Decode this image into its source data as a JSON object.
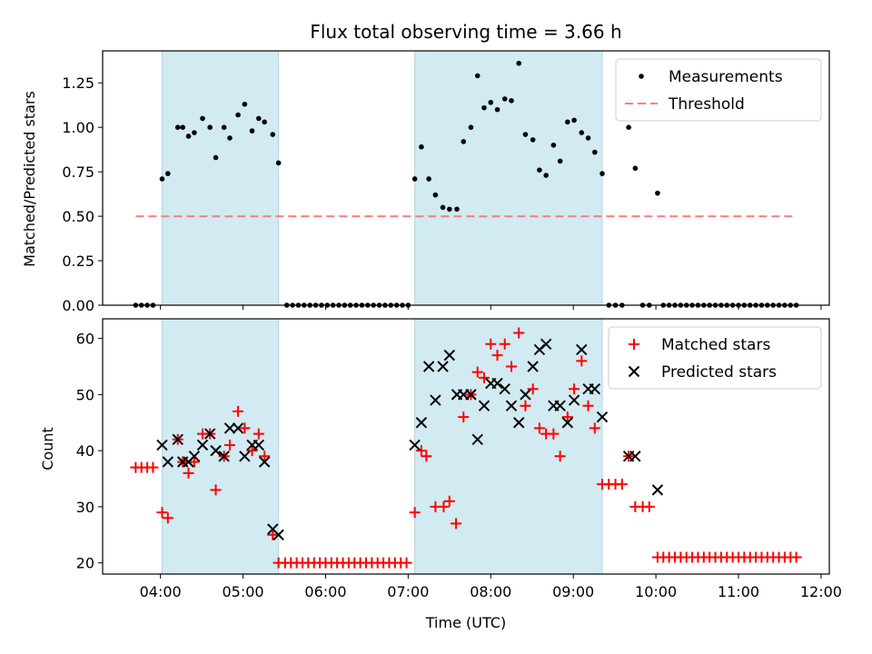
{
  "title": "Flux total observing time = 3.66 h",
  "xlabel": "Time (UTC)",
  "xticks": [
    {
      "v": 4,
      "label": "04:00"
    },
    {
      "v": 5,
      "label": "05:00"
    },
    {
      "v": 6,
      "label": "06:00"
    },
    {
      "v": 7,
      "label": "07:00"
    },
    {
      "v": 8,
      "label": "08:00"
    },
    {
      "v": 9,
      "label": "09:00"
    },
    {
      "v": 10,
      "label": "10:00"
    },
    {
      "v": 11,
      "label": "11:00"
    },
    {
      "v": 12,
      "label": "12:00"
    }
  ],
  "chart_data": [
    {
      "type": "scatter",
      "ylabel": "Matched/Predicted stars",
      "xlim": [
        3.3,
        12.1
      ],
      "ylim": [
        0,
        1.43
      ],
      "yticks": [
        "0.00",
        "0.25",
        "0.50",
        "0.75",
        "1.00",
        "1.25"
      ],
      "shaded_spans": [
        [
          4.02,
          5.43
        ],
        [
          7.08,
          9.35
        ]
      ],
      "shade_color": "#add8e6",
      "legend_position": "upper right",
      "series": [
        {
          "name": "Measurements",
          "marker": "dot",
          "color": "#000000",
          "points": [
            [
              3.7,
              0
            ],
            [
              3.77,
              0
            ],
            [
              3.84,
              0
            ],
            [
              3.91,
              0
            ],
            [
              4.02,
              0.71
            ],
            [
              4.09,
              0.74
            ],
            [
              4.21,
              1.0
            ],
            [
              4.27,
              1.0
            ],
            [
              4.34,
              0.95
            ],
            [
              4.41,
              0.97
            ],
            [
              4.51,
              1.05
            ],
            [
              4.6,
              1.0
            ],
            [
              4.67,
              0.83
            ],
            [
              4.77,
              1.0
            ],
            [
              4.84,
              0.94
            ],
            [
              4.94,
              1.07
            ],
            [
              5.02,
              1.13
            ],
            [
              5.11,
              0.98
            ],
            [
              5.19,
              1.05
            ],
            [
              5.26,
              1.03
            ],
            [
              5.36,
              0.96
            ],
            [
              5.43,
              0.8
            ],
            [
              5.53,
              0
            ],
            [
              5.6,
              0
            ],
            [
              5.67,
              0
            ],
            [
              5.74,
              0
            ],
            [
              5.81,
              0
            ],
            [
              5.88,
              0
            ],
            [
              5.95,
              0
            ],
            [
              6.02,
              0
            ],
            [
              6.09,
              0
            ],
            [
              6.16,
              0
            ],
            [
              6.23,
              0
            ],
            [
              6.3,
              0
            ],
            [
              6.37,
              0
            ],
            [
              6.44,
              0
            ],
            [
              6.51,
              0
            ],
            [
              6.58,
              0
            ],
            [
              6.65,
              0
            ],
            [
              6.72,
              0
            ],
            [
              6.79,
              0
            ],
            [
              6.86,
              0
            ],
            [
              6.93,
              0
            ],
            [
              7.0,
              0
            ],
            [
              7.08,
              0.71
            ],
            [
              7.16,
              0.89
            ],
            [
              7.25,
              0.71
            ],
            [
              7.33,
              0.62
            ],
            [
              7.42,
              0.55
            ],
            [
              7.5,
              0.54
            ],
            [
              7.59,
              0.54
            ],
            [
              7.67,
              0.92
            ],
            [
              7.76,
              1.0
            ],
            [
              7.84,
              1.29
            ],
            [
              7.92,
              1.11
            ],
            [
              8.0,
              1.14
            ],
            [
              8.08,
              1.1
            ],
            [
              8.17,
              1.16
            ],
            [
              8.25,
              1.15
            ],
            [
              8.34,
              1.36
            ],
            [
              8.42,
              0.96
            ],
            [
              8.51,
              0.93
            ],
            [
              8.59,
              0.76
            ],
            [
              8.67,
              0.73
            ],
            [
              8.76,
              0.9
            ],
            [
              8.84,
              0.81
            ],
            [
              8.93,
              1.03
            ],
            [
              9.01,
              1.04
            ],
            [
              9.1,
              0.97
            ],
            [
              9.18,
              0.94
            ],
            [
              9.26,
              0.86
            ],
            [
              9.35,
              0.74
            ],
            [
              9.43,
              0
            ],
            [
              9.51,
              0
            ],
            [
              9.59,
              0
            ],
            [
              9.67,
              1.0
            ],
            [
              9.75,
              0.77
            ],
            [
              9.84,
              0
            ],
            [
              9.92,
              0
            ],
            [
              10.02,
              0.63
            ],
            [
              10.09,
              0
            ],
            [
              10.16,
              0
            ],
            [
              10.23,
              0
            ],
            [
              10.3,
              0
            ],
            [
              10.37,
              0
            ],
            [
              10.44,
              0
            ],
            [
              10.51,
              0
            ],
            [
              10.58,
              0
            ],
            [
              10.65,
              0
            ],
            [
              10.72,
              0
            ],
            [
              10.79,
              0
            ],
            [
              10.86,
              0
            ],
            [
              10.93,
              0
            ],
            [
              11.0,
              0
            ],
            [
              11.07,
              0
            ],
            [
              11.14,
              0
            ],
            [
              11.21,
              0
            ],
            [
              11.28,
              0
            ],
            [
              11.35,
              0
            ],
            [
              11.42,
              0
            ],
            [
              11.49,
              0
            ],
            [
              11.56,
              0
            ],
            [
              11.63,
              0
            ],
            [
              11.7,
              0
            ]
          ]
        },
        {
          "name": "Threshold",
          "marker": "dashed-line",
          "color": "#ff7f7f",
          "points": [
            [
              3.7,
              0.5
            ],
            [
              11.67,
              0.5
            ]
          ]
        }
      ]
    },
    {
      "type": "scatter",
      "ylabel": "Count",
      "xlim": [
        3.3,
        12.1
      ],
      "ylim": [
        18,
        63.5
      ],
      "yticks": [
        "20",
        "30",
        "40",
        "50",
        "60"
      ],
      "shaded_spans": [
        [
          4.02,
          5.43
        ],
        [
          7.08,
          9.35
        ]
      ],
      "shade_color": "#add8e6",
      "legend_position": "upper right",
      "series": [
        {
          "name": "Matched stars",
          "marker": "plus",
          "color": "#ff0000",
          "points": [
            [
              3.7,
              37
            ],
            [
              3.77,
              37
            ],
            [
              3.84,
              37
            ],
            [
              3.91,
              37
            ],
            [
              4.02,
              29
            ],
            [
              4.09,
              28
            ],
            [
              4.21,
              42
            ],
            [
              4.27,
              38
            ],
            [
              4.34,
              36
            ],
            [
              4.41,
              38
            ],
            [
              4.51,
              43
            ],
            [
              4.6,
              43
            ],
            [
              4.67,
              33
            ],
            [
              4.77,
              39
            ],
            [
              4.84,
              41
            ],
            [
              4.94,
              47
            ],
            [
              5.02,
              44
            ],
            [
              5.11,
              40
            ],
            [
              5.19,
              43
            ],
            [
              5.26,
              39
            ],
            [
              5.36,
              25
            ],
            [
              5.43,
              20
            ],
            [
              5.51,
              20
            ],
            [
              5.58,
              20
            ],
            [
              5.65,
              20
            ],
            [
              5.72,
              20
            ],
            [
              5.79,
              20
            ],
            [
              5.86,
              20
            ],
            [
              5.93,
              20
            ],
            [
              6.0,
              20
            ],
            [
              6.07,
              20
            ],
            [
              6.14,
              20
            ],
            [
              6.21,
              20
            ],
            [
              6.28,
              20
            ],
            [
              6.35,
              20
            ],
            [
              6.42,
              20
            ],
            [
              6.49,
              20
            ],
            [
              6.56,
              20
            ],
            [
              6.63,
              20
            ],
            [
              6.7,
              20
            ],
            [
              6.77,
              20
            ],
            [
              6.84,
              20
            ],
            [
              6.91,
              20
            ],
            [
              6.98,
              20
            ],
            [
              7.08,
              29
            ],
            [
              7.16,
              40
            ],
            [
              7.22,
              39
            ],
            [
              7.33,
              30
            ],
            [
              7.43,
              30
            ],
            [
              7.5,
              31
            ],
            [
              7.58,
              27
            ],
            [
              7.67,
              46
            ],
            [
              7.76,
              50
            ],
            [
              7.84,
              54
            ],
            [
              7.92,
              53
            ],
            [
              8.0,
              59
            ],
            [
              8.08,
              57
            ],
            [
              8.17,
              59
            ],
            [
              8.25,
              55
            ],
            [
              8.34,
              61
            ],
            [
              8.42,
              48
            ],
            [
              8.51,
              51
            ],
            [
              8.59,
              44
            ],
            [
              8.67,
              43
            ],
            [
              8.76,
              43
            ],
            [
              8.84,
              39
            ],
            [
              8.93,
              46
            ],
            [
              9.01,
              51
            ],
            [
              9.1,
              56
            ],
            [
              9.18,
              48
            ],
            [
              9.26,
              44
            ],
            [
              9.35,
              34
            ],
            [
              9.43,
              34
            ],
            [
              9.51,
              34
            ],
            [
              9.59,
              34
            ],
            [
              9.67,
              39
            ],
            [
              9.75,
              30
            ],
            [
              9.84,
              30
            ],
            [
              9.92,
              30
            ],
            [
              10.02,
              21
            ],
            [
              10.09,
              21
            ],
            [
              10.16,
              21
            ],
            [
              10.23,
              21
            ],
            [
              10.3,
              21
            ],
            [
              10.37,
              21
            ],
            [
              10.44,
              21
            ],
            [
              10.51,
              21
            ],
            [
              10.58,
              21
            ],
            [
              10.65,
              21
            ],
            [
              10.72,
              21
            ],
            [
              10.79,
              21
            ],
            [
              10.86,
              21
            ],
            [
              10.93,
              21
            ],
            [
              11.0,
              21
            ],
            [
              11.07,
              21
            ],
            [
              11.14,
              21
            ],
            [
              11.21,
              21
            ],
            [
              11.28,
              21
            ],
            [
              11.35,
              21
            ],
            [
              11.42,
              21
            ],
            [
              11.49,
              21
            ],
            [
              11.56,
              21
            ],
            [
              11.63,
              21
            ],
            [
              11.7,
              21
            ]
          ]
        },
        {
          "name": "Predicted stars",
          "marker": "x",
          "color": "#000000",
          "points": [
            [
              4.02,
              41
            ],
            [
              4.09,
              38
            ],
            [
              4.21,
              42
            ],
            [
              4.27,
              38
            ],
            [
              4.34,
              38
            ],
            [
              4.41,
              39
            ],
            [
              4.51,
              41
            ],
            [
              4.6,
              43
            ],
            [
              4.67,
              40
            ],
            [
              4.77,
              39
            ],
            [
              4.84,
              44
            ],
            [
              4.94,
              44
            ],
            [
              5.02,
              39
            ],
            [
              5.11,
              41
            ],
            [
              5.19,
              41
            ],
            [
              5.26,
              38
            ],
            [
              5.36,
              26
            ],
            [
              5.43,
              25
            ],
            [
              7.08,
              41
            ],
            [
              7.16,
              45
            ],
            [
              7.25,
              55
            ],
            [
              7.33,
              49
            ],
            [
              7.42,
              55
            ],
            [
              7.5,
              57
            ],
            [
              7.59,
              50
            ],
            [
              7.67,
              50
            ],
            [
              7.76,
              50
            ],
            [
              7.84,
              42
            ],
            [
              7.92,
              48
            ],
            [
              8.0,
              52
            ],
            [
              8.08,
              52
            ],
            [
              8.17,
              51
            ],
            [
              8.25,
              48
            ],
            [
              8.34,
              45
            ],
            [
              8.42,
              50
            ],
            [
              8.51,
              55
            ],
            [
              8.59,
              58
            ],
            [
              8.67,
              59
            ],
            [
              8.76,
              48
            ],
            [
              8.84,
              48
            ],
            [
              8.93,
              45
            ],
            [
              9.01,
              49
            ],
            [
              9.1,
              58
            ],
            [
              9.18,
              51
            ],
            [
              9.26,
              51
            ],
            [
              9.35,
              46
            ],
            [
              9.67,
              39
            ],
            [
              9.75,
              39
            ],
            [
              10.02,
              33
            ]
          ]
        }
      ]
    }
  ]
}
